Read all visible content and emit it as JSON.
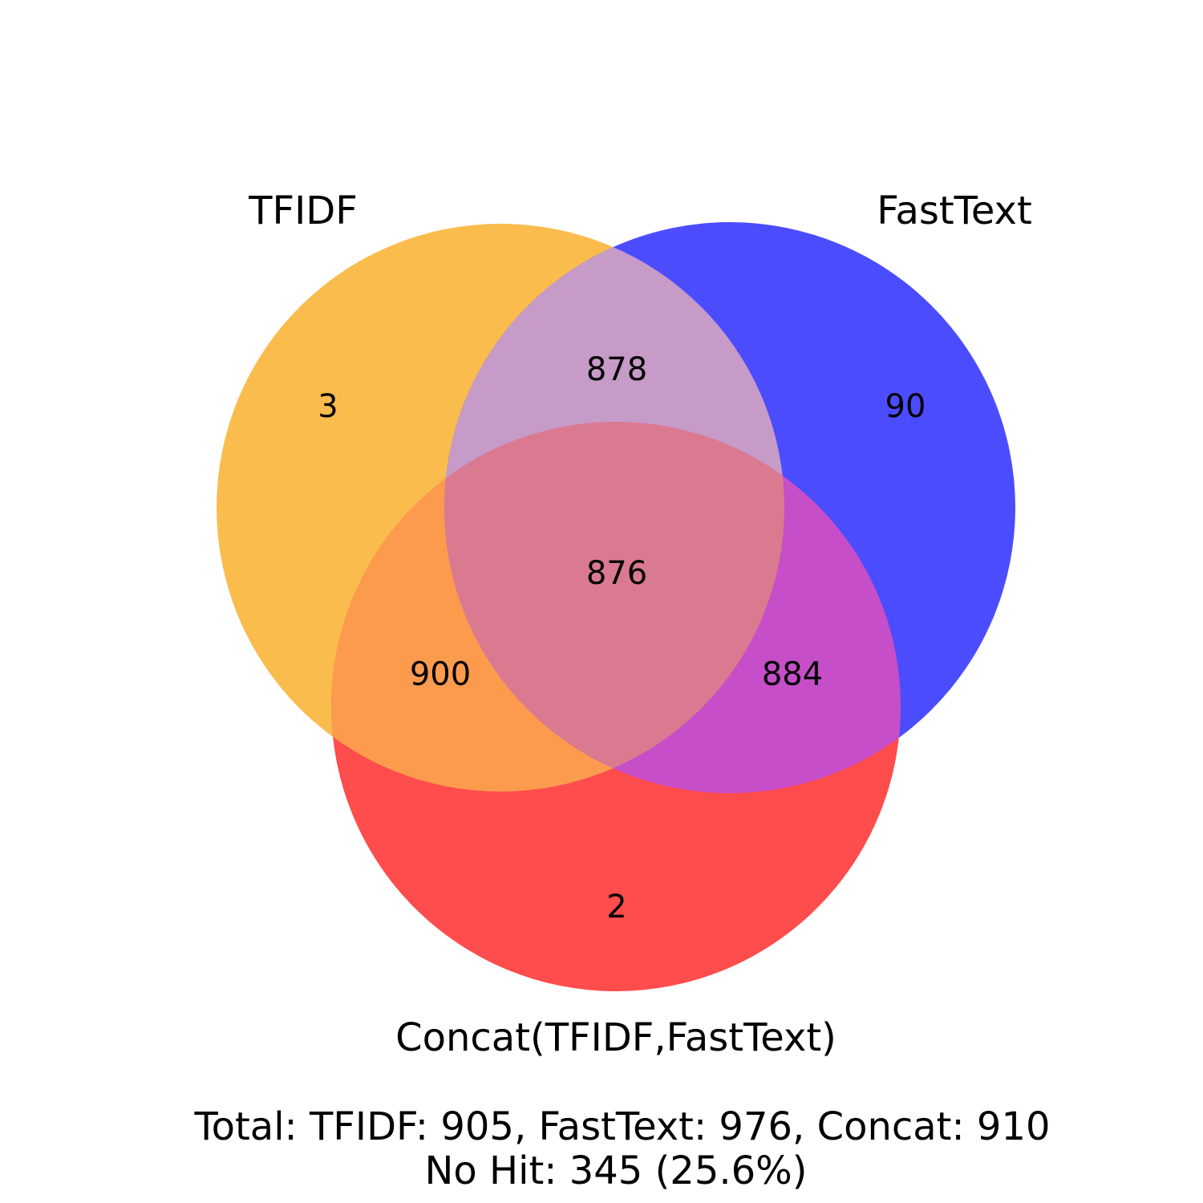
{
  "chart_data": {
    "type": "venn",
    "sets": [
      {
        "key": "tfidf",
        "label": "TFIDF",
        "color": "#fbbc4e"
      },
      {
        "key": "fasttext",
        "label": "FastText",
        "color": "#4c4cff"
      },
      {
        "key": "concat",
        "label": "Concat(TFIDF,FastText)",
        "color": "#ff4c4c"
      }
    ],
    "regions": {
      "tfidf_only": "3",
      "fasttext_only": "90",
      "concat_only": "2",
      "tfidf_fasttext": "878",
      "tfidf_concat": "900",
      "fasttext_concat": "884",
      "all": "876"
    },
    "summary": {
      "totals": "Total: TFIDF: 905, FastText: 976, Concat: 910",
      "no_hit": "No Hit: 345 (25.6%)"
    }
  }
}
